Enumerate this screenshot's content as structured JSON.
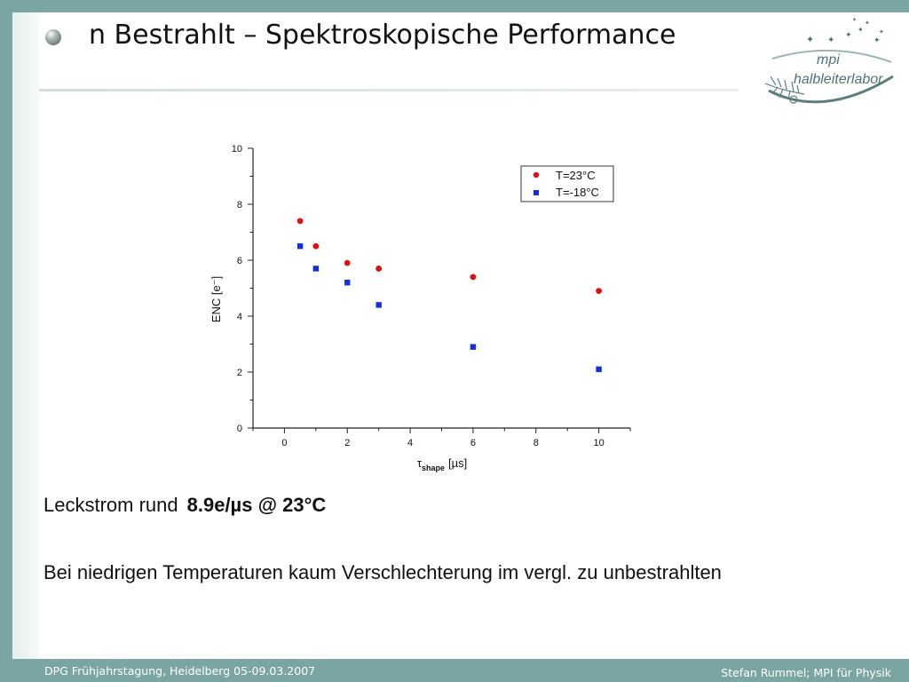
{
  "slide": {
    "title": "n Bestrahlt – Spektroskopische Performance",
    "logo": {
      "line1": "mpi",
      "line2": "halbleiterlabor"
    },
    "leakage": {
      "label": "Leckstrom rund",
      "value": "8.9e/µs @ 23°C"
    },
    "conclusion": "Bei niedrigen Temperaturen kaum Verschlechterung im vergl. zu unbestrahlten"
  },
  "footer": {
    "left": "DPG Frühjahrstagung, Heidelberg 05-09.03.2007",
    "right": "Stefan  Rummel; MPI für Physik"
  },
  "colors": {
    "frame": "#7aa5a3",
    "series_warm": "#e01010",
    "series_cold": "#1030e0"
  },
  "chart_data": {
    "type": "scatter",
    "title": "",
    "xlabel_symbol": "τ",
    "xlabel_sub": "shape",
    "xlabel_unit": "[µs]",
    "ylabel": "ENC [e⁻]",
    "xlim": [
      -1,
      11
    ],
    "ylim": [
      0,
      10
    ],
    "x_ticks": [
      0,
      2,
      4,
      6,
      8,
      10
    ],
    "y_ticks": [
      0,
      2,
      4,
      6,
      8,
      10
    ],
    "grid": false,
    "legend": "top-right",
    "series": [
      {
        "name": "T=23°C",
        "marker": "circle",
        "x": [
          0.5,
          1,
          2,
          3,
          6,
          10
        ],
        "y": [
          7.4,
          6.5,
          5.9,
          5.7,
          5.4,
          4.9
        ]
      },
      {
        "name": "T=-18°C",
        "marker": "square",
        "x": [
          0.5,
          1,
          2,
          3,
          6,
          10
        ],
        "y": [
          6.5,
          5.7,
          5.2,
          4.4,
          2.9,
          2.1
        ]
      }
    ]
  }
}
